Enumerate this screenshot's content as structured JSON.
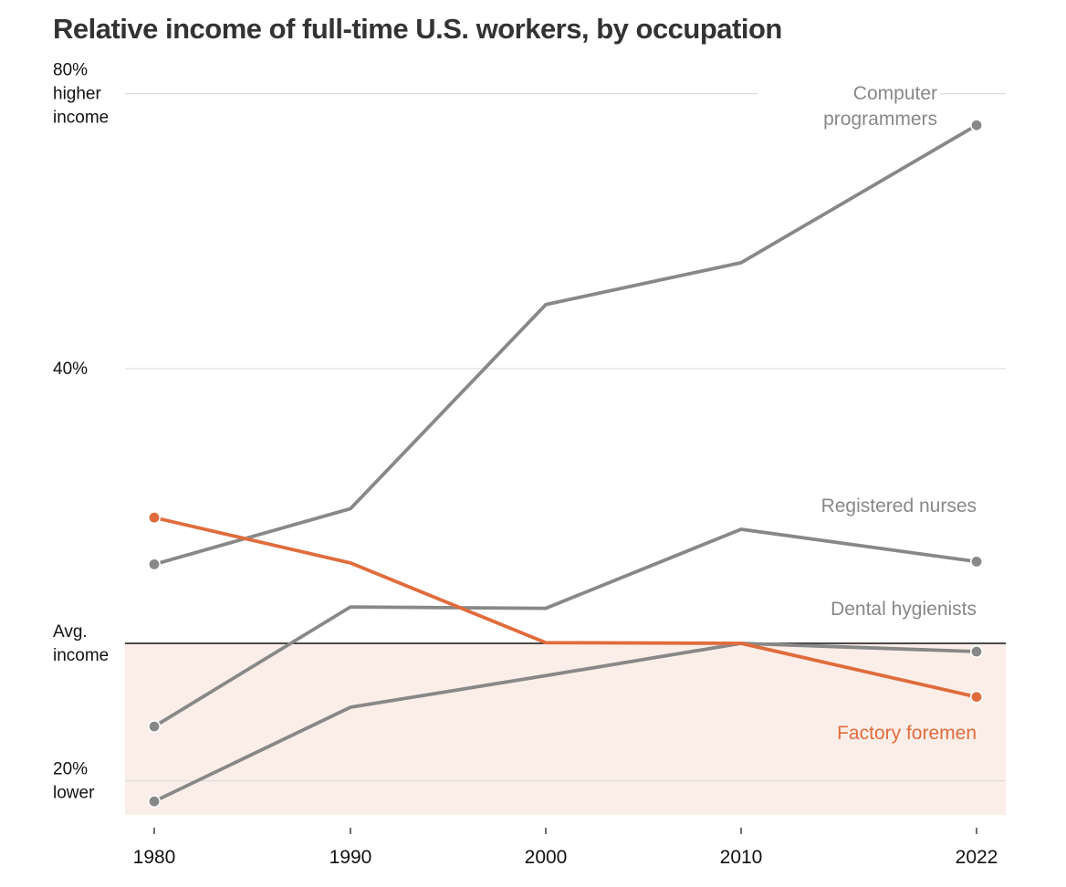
{
  "title": "Relative income of full-time U.S. workers, by occupation",
  "chart_data": {
    "type": "line",
    "title": "Relative income of full-time U.S. workers, by occupation",
    "xlabel": "",
    "ylabel": "",
    "x": [
      1980,
      1990,
      2000,
      2010,
      2022
    ],
    "x_tick_labels": [
      "1980",
      "1990",
      "2000",
      "2010",
      "2022"
    ],
    "ylim": [
      -25,
      80
    ],
    "y_ticks": [
      {
        "value": 80,
        "lines": [
          "80%",
          "higher",
          "income"
        ]
      },
      {
        "value": 40,
        "lines": [
          "40%"
        ]
      },
      {
        "value": 0,
        "lines": [
          "Avg.",
          "income"
        ]
      },
      {
        "value": -20,
        "lines": [
          "20%",
          "lower"
        ]
      }
    ],
    "grid": true,
    "below_average_shading": true,
    "series": [
      {
        "name": "Computer programmers",
        "label_lines": [
          "Computer",
          "programmers"
        ],
        "color": "#888888",
        "values": [
          11.5,
          19.6,
          49.3,
          55.4,
          75.4
        ]
      },
      {
        "name": "Registered nurses",
        "label_lines": [
          "Registered nurses"
        ],
        "color": "#888888",
        "values": [
          -12.1,
          5.3,
          5.1,
          16.6,
          11.9
        ]
      },
      {
        "name": "Dental hygienists",
        "label_lines": [
          "Dental hygienists"
        ],
        "color": "#888888",
        "values": [
          -23.0,
          -9.3,
          -4.7,
          0.0,
          -1.2
        ]
      },
      {
        "name": "Factory foremen",
        "label_lines": [
          "Factory foremen"
        ],
        "color": "#e06c3c",
        "values": [
          18.3,
          11.7,
          0.1,
          0.0,
          -7.8
        ]
      }
    ]
  }
}
